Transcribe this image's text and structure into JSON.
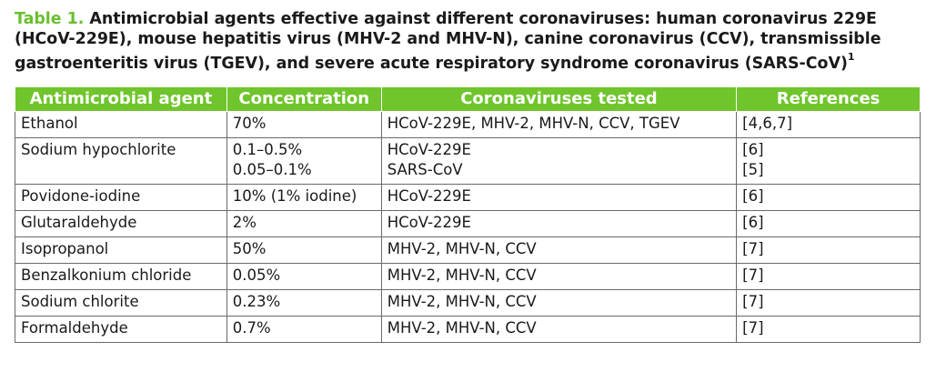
{
  "caption": {
    "label": "Table 1.",
    "text": " Antimicrobial agents effective against different coronaviruses: human coronavirus 229E (HCoV-229E), mouse hepatitis virus (MHV-2 and MHV-N), canine coronavirus (CCV), transmissible gastroenteritis virus (TGEV), and severe acute respiratory syndrome coronavirus (SARS-CoV)",
    "footnote": "1"
  },
  "headers": [
    "Antimicrobial agent",
    "Concentration",
    "Coronaviruses tested",
    "References"
  ],
  "rows": [
    {
      "agent": "Ethanol",
      "conc": [
        "70%"
      ],
      "viruses": [
        "HCoV-229E, MHV-2, MHV-N, CCV, TGEV"
      ],
      "refs": [
        "[4,6,7]"
      ]
    },
    {
      "agent": "Sodium hypochlorite",
      "conc": [
        "0.1–0.5%",
        "0.05–0.1%"
      ],
      "viruses": [
        "HCoV-229E",
        "SARS-CoV"
      ],
      "refs": [
        "[6]",
        "[5]"
      ]
    },
    {
      "agent": "Povidone-iodine",
      "conc": [
        "10% (1% iodine)"
      ],
      "viruses": [
        "HCoV-229E"
      ],
      "refs": [
        "[6]"
      ]
    },
    {
      "agent": "Glutaraldehyde",
      "conc": [
        "2%"
      ],
      "viruses": [
        "HCoV-229E"
      ],
      "refs": [
        "[6]"
      ]
    },
    {
      "agent": "Isopropanol",
      "conc": [
        "50%"
      ],
      "viruses": [
        "MHV-2, MHV-N, CCV"
      ],
      "refs": [
        "[7]"
      ]
    },
    {
      "agent": "Benzalkonium chloride",
      "conc": [
        "0.05%"
      ],
      "viruses": [
        "MHV-2, MHV-N, CCV"
      ],
      "refs": [
        "[7]"
      ]
    },
    {
      "agent": "Sodium chlorite",
      "conc": [
        "0.23%"
      ],
      "viruses": [
        "MHV-2, MHV-N, CCV"
      ],
      "refs": [
        "[7]"
      ]
    },
    {
      "agent": "Formaldehyde",
      "conc": [
        "0.7%"
      ],
      "viruses": [
        "MHV-2, MHV-N, CCV"
      ],
      "refs": [
        "[7]"
      ]
    }
  ]
}
